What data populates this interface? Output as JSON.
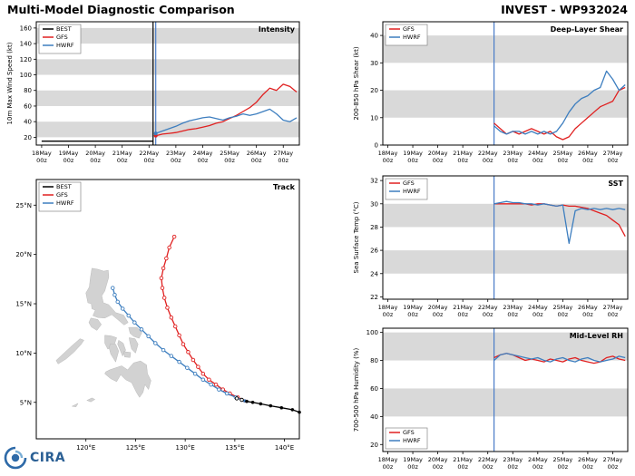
{
  "header": {
    "title": "Multi-Model Diagnostic Comparison",
    "storm_id": "INVEST - WP932024"
  },
  "footer": {
    "logo_text": "CIRA"
  },
  "colors": {
    "best": "#000000",
    "gfs": "#e02020",
    "hwrf": "#3d7ebf",
    "init_line": "#4a7cc7",
    "band": "#d9d9d9",
    "land": "#d2d2d2"
  },
  "time_ticks": [
    {
      "day": "18May",
      "hour": "00z"
    },
    {
      "day": "19May",
      "hour": "00z"
    },
    {
      "day": "20May",
      "hour": "00z"
    },
    {
      "day": "21May",
      "hour": "00z"
    },
    {
      "day": "22May",
      "hour": "00z"
    },
    {
      "day": "23May",
      "hour": "00z"
    },
    {
      "day": "24May",
      "hour": "00z"
    },
    {
      "day": "25May",
      "hour": "00z"
    },
    {
      "day": "26May",
      "hour": "00z"
    },
    {
      "day": "27May",
      "hour": "00z"
    }
  ],
  "forecast_x": [
    4.25,
    4.5,
    4.75,
    5,
    5.25,
    5.5,
    5.75,
    6,
    6.25,
    6.5,
    6.75,
    7,
    7.25,
    7.5,
    7.75,
    8,
    8.25,
    8.5,
    8.75,
    9,
    9.25,
    9.5
  ],
  "chart_data": [
    {
      "id": "intensity",
      "type": "line",
      "title": "Intensity",
      "ylabel": "10m Max Wind Speed (kt)",
      "xlim": [
        -0.2,
        9.6
      ],
      "ylim": [
        10,
        168
      ],
      "yticks": [
        20,
        40,
        60,
        80,
        100,
        120,
        140,
        160
      ],
      "bands": [
        [
          20,
          40
        ],
        [
          60,
          80
        ],
        [
          100,
          120
        ],
        [
          140,
          160
        ]
      ],
      "vlines": [
        {
          "x": 4.15,
          "color": "best"
        },
        {
          "x": 4.25,
          "color": "init_line"
        }
      ],
      "legend_pos": "tl",
      "legend": [
        {
          "label": "BEST",
          "color": "best"
        },
        {
          "label": "GFS",
          "color": "gfs"
        },
        {
          "label": "HWRF",
          "color": "hwrf"
        }
      ],
      "series": [
        {
          "name": "BEST",
          "color": "best",
          "x": [
            0,
            4.15
          ],
          "y": [
            15,
            15
          ]
        },
        {
          "name": "GFS",
          "color": "gfs",
          "start_dot": true,
          "y": [
            22,
            24,
            25,
            26,
            28,
            30,
            31,
            33,
            35,
            38,
            40,
            44,
            48,
            53,
            58,
            65,
            75,
            83,
            80,
            88,
            85,
            78
          ]
        },
        {
          "name": "HWRF",
          "color": "hwrf",
          "start_dot": true,
          "y": [
            25,
            28,
            31,
            34,
            38,
            41,
            43,
            45,
            46,
            44,
            42,
            45,
            47,
            50,
            48,
            50,
            53,
            56,
            50,
            42,
            40,
            45
          ]
        }
      ]
    },
    {
      "id": "shear",
      "type": "line",
      "title": "Deep-Layer Shear",
      "ylabel": "200-850 hPa Shear (kt)",
      "xlim": [
        -0.2,
        9.6
      ],
      "ylim": [
        0,
        45
      ],
      "yticks": [
        0,
        10,
        20,
        30,
        40
      ],
      "bands": [
        [
          10,
          20
        ],
        [
          30,
          40
        ]
      ],
      "vlines": [
        {
          "x": 4.25,
          "color": "init_line"
        }
      ],
      "legend_pos": "tl",
      "legend": [
        {
          "label": "GFS",
          "color": "gfs"
        },
        {
          "label": "HWRF",
          "color": "hwrf"
        }
      ],
      "series": [
        {
          "name": "GFS",
          "color": "gfs",
          "y": [
            8,
            6,
            4,
            5,
            4,
            5,
            6,
            5,
            4,
            5,
            3,
            2,
            3,
            6,
            8,
            10,
            12,
            14,
            15,
            16,
            20,
            21
          ]
        },
        {
          "name": "HWRF",
          "color": "hwrf",
          "y": [
            7,
            5,
            4,
            5,
            5,
            4,
            5,
            4,
            5,
            4,
            5,
            8,
            12,
            15,
            17,
            18,
            20,
            21,
            27,
            24,
            20,
            22
          ]
        }
      ]
    },
    {
      "id": "sst",
      "type": "line",
      "title": "SST",
      "ylabel": "Sea Surface Temp (°C)",
      "xlim": [
        -0.2,
        9.6
      ],
      "ylim": [
        21.8,
        32.4
      ],
      "yticks": [
        22,
        24,
        26,
        28,
        30,
        32
      ],
      "bands": [
        [
          24,
          26
        ],
        [
          28,
          30
        ]
      ],
      "vlines": [
        {
          "x": 4.25,
          "color": "init_line"
        }
      ],
      "legend_pos": "tl",
      "legend": [
        {
          "label": "GFS",
          "color": "gfs"
        },
        {
          "label": "HWRF",
          "color": "hwrf"
        }
      ],
      "series": [
        {
          "name": "GFS",
          "color": "gfs",
          "y": [
            30,
            30,
            30,
            30,
            30,
            30,
            29.9,
            30,
            30,
            29.9,
            29.8,
            29.9,
            29.8,
            29.8,
            29.7,
            29.6,
            29.4,
            29.2,
            29,
            28.6,
            28.2,
            27.2
          ]
        },
        {
          "name": "HWRF",
          "color": "hwrf",
          "y": [
            30,
            30.1,
            30.2,
            30.1,
            30.1,
            30,
            30,
            29.9,
            30,
            29.9,
            29.8,
            29.9,
            26.6,
            29.4,
            29.6,
            29.5,
            29.6,
            29.5,
            29.6,
            29.5,
            29.6,
            29.5
          ]
        }
      ]
    },
    {
      "id": "rh",
      "type": "line",
      "title": "Mid-Level RH",
      "ylabel": "700-500 hPa Humidity (%)",
      "xlim": [
        -0.2,
        9.6
      ],
      "ylim": [
        15,
        103
      ],
      "yticks": [
        20,
        40,
        60,
        80,
        100
      ],
      "bands": [
        [
          40,
          60
        ],
        [
          80,
          100
        ]
      ],
      "vlines": [
        {
          "x": 4.25,
          "color": "init_line"
        }
      ],
      "legend_pos": "bl",
      "legend": [
        {
          "label": "GFS",
          "color": "gfs"
        },
        {
          "label": "HWRF",
          "color": "hwrf"
        }
      ],
      "series": [
        {
          "name": "GFS",
          "color": "gfs",
          "y": [
            82,
            84,
            85,
            84,
            82,
            80,
            81,
            80,
            79,
            81,
            80,
            79,
            81,
            82,
            80,
            79,
            78,
            79,
            82,
            83,
            81,
            80
          ]
        },
        {
          "name": "HWRF",
          "color": "hwrf",
          "y": [
            80,
            84,
            85,
            84,
            83,
            82,
            81,
            82,
            80,
            79,
            81,
            82,
            80,
            79,
            81,
            82,
            80,
            79,
            80,
            81,
            83,
            82
          ]
        }
      ]
    },
    {
      "id": "track",
      "type": "track",
      "title": "Track",
      "xlim": [
        115,
        141.5
      ],
      "ylim": [
        1.3,
        27.6
      ],
      "lon_ticks": [
        120,
        125,
        130,
        135,
        140
      ],
      "lat_ticks": [
        5,
        10,
        15,
        20,
        25
      ],
      "legend_pos": "tl",
      "legend": [
        {
          "label": "BEST",
          "color": "best"
        },
        {
          "label": "GFS",
          "color": "gfs"
        },
        {
          "label": "HWRF",
          "color": "hwrf"
        }
      ],
      "land": [
        [
          [
            120.6,
            18.6
          ],
          [
            121.2,
            18.5
          ],
          [
            121.8,
            18.3
          ],
          [
            122.25,
            18.4
          ],
          [
            122.3,
            17.7
          ],
          [
            122.1,
            17.0
          ],
          [
            121.9,
            16.3
          ],
          [
            121.6,
            15.8
          ],
          [
            121.75,
            15.1
          ],
          [
            122.3,
            14.9
          ],
          [
            123.0,
            14.1
          ],
          [
            123.8,
            13.85
          ],
          [
            124.25,
            13.1
          ],
          [
            123.85,
            12.85
          ],
          [
            123.2,
            13.4
          ],
          [
            122.6,
            13.9
          ],
          [
            121.9,
            13.55
          ],
          [
            121.2,
            13.6
          ],
          [
            120.7,
            13.8
          ],
          [
            120.95,
            14.35
          ],
          [
            120.6,
            14.5
          ],
          [
            120.55,
            15.0
          ],
          [
            120.2,
            15.1
          ],
          [
            120.0,
            16.1
          ],
          [
            120.35,
            16.7
          ],
          [
            120.45,
            17.6
          ]
        ],
        [
          [
            120.5,
            13.55
          ],
          [
            121.2,
            13.4
          ],
          [
            121.55,
            12.9
          ],
          [
            121.1,
            12.3
          ],
          [
            120.55,
            12.65
          ],
          [
            120.3,
            13.1
          ]
        ],
        [
          [
            117.2,
            8.9
          ],
          [
            118.0,
            9.4
          ],
          [
            118.8,
            10.1
          ],
          [
            119.5,
            10.85
          ],
          [
            119.8,
            11.3
          ],
          [
            119.4,
            11.45
          ],
          [
            118.6,
            10.75
          ],
          [
            117.8,
            10.0
          ],
          [
            117.0,
            9.25
          ]
        ],
        [
          [
            121.9,
            11.8
          ],
          [
            122.5,
            11.75
          ],
          [
            123.1,
            11.55
          ],
          [
            122.8,
            10.7
          ],
          [
            122.2,
            10.4
          ],
          [
            121.9,
            11.0
          ]
        ],
        [
          [
            122.45,
            10.95
          ],
          [
            123.0,
            10.9
          ],
          [
            123.3,
            10.2
          ],
          [
            123.0,
            9.1
          ],
          [
            122.5,
            9.9
          ],
          [
            122.35,
            10.5
          ]
        ],
        [
          [
            123.3,
            11.3
          ],
          [
            123.75,
            11.0
          ],
          [
            124.0,
            10.3
          ],
          [
            123.7,
            9.7
          ],
          [
            123.4,
            10.4
          ],
          [
            123.2,
            10.9
          ]
        ],
        [
          [
            123.8,
            10.15
          ],
          [
            124.5,
            10.05
          ],
          [
            124.45,
            9.55
          ],
          [
            123.9,
            9.6
          ]
        ],
        [
          [
            124.35,
            11.55
          ],
          [
            124.95,
            11.45
          ],
          [
            125.25,
            10.9
          ],
          [
            125.0,
            10.0
          ],
          [
            124.6,
            10.4
          ],
          [
            124.45,
            11.0
          ]
        ],
        [
          [
            124.3,
            12.6
          ],
          [
            125.15,
            12.6
          ],
          [
            125.65,
            12.1
          ],
          [
            125.35,
            11.5
          ],
          [
            124.8,
            11.7
          ],
          [
            124.45,
            12.0
          ]
        ],
        [
          [
            121.9,
            7.9
          ],
          [
            122.5,
            7.4
          ],
          [
            123.1,
            7.1
          ],
          [
            123.5,
            7.8
          ],
          [
            124.0,
            7.3
          ],
          [
            124.6,
            7.0
          ],
          [
            125.1,
            6.0
          ],
          [
            125.4,
            5.5
          ],
          [
            125.75,
            6.0
          ],
          [
            125.95,
            6.8
          ],
          [
            126.3,
            6.3
          ],
          [
            126.55,
            7.2
          ],
          [
            126.2,
            7.9
          ],
          [
            126.1,
            8.8
          ],
          [
            125.5,
            9.2
          ],
          [
            124.8,
            9.0
          ],
          [
            124.2,
            8.3
          ],
          [
            123.6,
            8.7
          ],
          [
            123.0,
            8.5
          ],
          [
            122.4,
            8.3
          ],
          [
            122.0,
            8.1
          ]
        ],
        [
          [
            120.1,
            5.2
          ],
          [
            120.6,
            5.45
          ],
          [
            120.9,
            5.3
          ],
          [
            120.5,
            5.05
          ]
        ],
        [
          [
            118.6,
            4.6
          ],
          [
            119.2,
            4.9
          ],
          [
            119.0,
            4.55
          ]
        ]
      ],
      "series": [
        {
          "name": "GFS",
          "color": "gfs",
          "marker": "open",
          "points": [
            [
              136.0,
              5.15
            ],
            [
              135.3,
              5.5
            ],
            [
              134.5,
              5.9
            ],
            [
              133.8,
              6.3
            ],
            [
              133.1,
              6.8
            ],
            [
              132.4,
              7.3
            ],
            [
              131.8,
              7.9
            ],
            [
              131.3,
              8.6
            ],
            [
              130.8,
              9.3
            ],
            [
              130.3,
              10.1
            ],
            [
              129.8,
              10.9
            ],
            [
              129.4,
              11.8
            ],
            [
              129.0,
              12.7
            ],
            [
              128.6,
              13.6
            ],
            [
              128.2,
              14.6
            ],
            [
              127.9,
              15.6
            ],
            [
              127.7,
              16.6
            ],
            [
              127.6,
              17.6
            ],
            [
              127.8,
              18.6
            ],
            [
              128.1,
              19.6
            ],
            [
              128.4,
              20.7
            ],
            [
              128.9,
              21.8
            ]
          ]
        },
        {
          "name": "HWRF",
          "color": "hwrf",
          "marker": "open",
          "points": [
            [
              136.0,
              5.15
            ],
            [
              135.1,
              5.5
            ],
            [
              134.2,
              5.9
            ],
            [
              133.4,
              6.3
            ],
            [
              132.6,
              6.8
            ],
            [
              131.8,
              7.3
            ],
            [
              131.0,
              7.9
            ],
            [
              130.2,
              8.5
            ],
            [
              129.4,
              9.1
            ],
            [
              128.6,
              9.7
            ],
            [
              127.8,
              10.3
            ],
            [
              127.0,
              11.0
            ],
            [
              126.3,
              11.7
            ],
            [
              125.6,
              12.4
            ],
            [
              124.9,
              13.1
            ],
            [
              124.3,
              13.8
            ],
            [
              123.7,
              14.5
            ],
            [
              123.2,
              15.2
            ],
            [
              122.9,
              15.9
            ],
            [
              122.7,
              16.6
            ]
          ]
        },
        {
          "name": "BEST",
          "color": "best",
          "marker": "filled",
          "points": [
            [
              141.5,
              4.0
            ],
            [
              140.8,
              4.25
            ],
            [
              139.7,
              4.45
            ],
            [
              138.6,
              4.65
            ],
            [
              137.6,
              4.85
            ],
            [
              136.8,
              5.0
            ],
            [
              136.2,
              5.1
            ]
          ],
          "open_points": [
            [
              135.7,
              5.25
            ],
            [
              135.2,
              5.4
            ]
          ]
        }
      ]
    }
  ]
}
